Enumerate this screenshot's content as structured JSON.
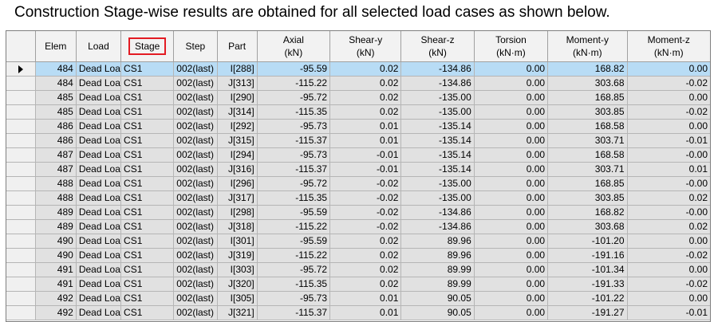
{
  "caption": "Construction Stage-wise results are obtained for all selected load cases as shown below.",
  "columns": {
    "elem": "Elem",
    "load": "Load",
    "stage": "Stage",
    "step": "Step",
    "part": "Part",
    "axial": "Axial",
    "axial_unit": "(kN)",
    "sheary": "Shear-y",
    "sheary_unit": "(kN)",
    "shearz": "Shear-z",
    "shearz_unit": "(kN)",
    "torsion": "Torsion",
    "torsion_unit": "(kN·m)",
    "momenty": "Moment-y",
    "momenty_unit": "(kN·m)",
    "momentz": "Moment-z",
    "momentz_unit": "(kN·m)"
  },
  "highlight_color": "#e31b23",
  "rows": [
    {
      "elem": "484",
      "load": "Dead Loa",
      "stage": "CS1",
      "step": "002(last)",
      "part": "I[288]",
      "axial": "-95.59",
      "sheary": "0.02",
      "shearz": "-134.86",
      "torsion": "0.00",
      "momenty": "168.82",
      "momentz": "0.00"
    },
    {
      "elem": "484",
      "load": "Dead Loa",
      "stage": "CS1",
      "step": "002(last)",
      "part": "J[313]",
      "axial": "-115.22",
      "sheary": "0.02",
      "shearz": "-134.86",
      "torsion": "0.00",
      "momenty": "303.68",
      "momentz": "-0.02"
    },
    {
      "elem": "485",
      "load": "Dead Loa",
      "stage": "CS1",
      "step": "002(last)",
      "part": "I[290]",
      "axial": "-95.72",
      "sheary": "0.02",
      "shearz": "-135.00",
      "torsion": "0.00",
      "momenty": "168.85",
      "momentz": "0.00"
    },
    {
      "elem": "485",
      "load": "Dead Loa",
      "stage": "CS1",
      "step": "002(last)",
      "part": "J[314]",
      "axial": "-115.35",
      "sheary": "0.02",
      "shearz": "-135.00",
      "torsion": "0.00",
      "momenty": "303.85",
      "momentz": "-0.02"
    },
    {
      "elem": "486",
      "load": "Dead Loa",
      "stage": "CS1",
      "step": "002(last)",
      "part": "I[292]",
      "axial": "-95.73",
      "sheary": "0.01",
      "shearz": "-135.14",
      "torsion": "0.00",
      "momenty": "168.58",
      "momentz": "0.00"
    },
    {
      "elem": "486",
      "load": "Dead Loa",
      "stage": "CS1",
      "step": "002(last)",
      "part": "J[315]",
      "axial": "-115.37",
      "sheary": "0.01",
      "shearz": "-135.14",
      "torsion": "0.00",
      "momenty": "303.71",
      "momentz": "-0.01"
    },
    {
      "elem": "487",
      "load": "Dead Loa",
      "stage": "CS1",
      "step": "002(last)",
      "part": "I[294]",
      "axial": "-95.73",
      "sheary": "-0.01",
      "shearz": "-135.14",
      "torsion": "0.00",
      "momenty": "168.58",
      "momentz": "-0.00"
    },
    {
      "elem": "487",
      "load": "Dead Loa",
      "stage": "CS1",
      "step": "002(last)",
      "part": "J[316]",
      "axial": "-115.37",
      "sheary": "-0.01",
      "shearz": "-135.14",
      "torsion": "0.00",
      "momenty": "303.71",
      "momentz": "0.01"
    },
    {
      "elem": "488",
      "load": "Dead Loa",
      "stage": "CS1",
      "step": "002(last)",
      "part": "I[296]",
      "axial": "-95.72",
      "sheary": "-0.02",
      "shearz": "-135.00",
      "torsion": "0.00",
      "momenty": "168.85",
      "momentz": "-0.00"
    },
    {
      "elem": "488",
      "load": "Dead Loa",
      "stage": "CS1",
      "step": "002(last)",
      "part": "J[317]",
      "axial": "-115.35",
      "sheary": "-0.02",
      "shearz": "-135.00",
      "torsion": "0.00",
      "momenty": "303.85",
      "momentz": "0.02"
    },
    {
      "elem": "489",
      "load": "Dead Loa",
      "stage": "CS1",
      "step": "002(last)",
      "part": "I[298]",
      "axial": "-95.59",
      "sheary": "-0.02",
      "shearz": "-134.86",
      "torsion": "0.00",
      "momenty": "168.82",
      "momentz": "-0.00"
    },
    {
      "elem": "489",
      "load": "Dead Loa",
      "stage": "CS1",
      "step": "002(last)",
      "part": "J[318]",
      "axial": "-115.22",
      "sheary": "-0.02",
      "shearz": "-134.86",
      "torsion": "0.00",
      "momenty": "303.68",
      "momentz": "0.02"
    },
    {
      "elem": "490",
      "load": "Dead Loa",
      "stage": "CS1",
      "step": "002(last)",
      "part": "I[301]",
      "axial": "-95.59",
      "sheary": "0.02",
      "shearz": "89.96",
      "torsion": "0.00",
      "momenty": "-101.20",
      "momentz": "0.00"
    },
    {
      "elem": "490",
      "load": "Dead Loa",
      "stage": "CS1",
      "step": "002(last)",
      "part": "J[319]",
      "axial": "-115.22",
      "sheary": "0.02",
      "shearz": "89.96",
      "torsion": "0.00",
      "momenty": "-191.16",
      "momentz": "-0.02"
    },
    {
      "elem": "491",
      "load": "Dead Loa",
      "stage": "CS1",
      "step": "002(last)",
      "part": "I[303]",
      "axial": "-95.72",
      "sheary": "0.02",
      "shearz": "89.99",
      "torsion": "0.00",
      "momenty": "-101.34",
      "momentz": "0.00"
    },
    {
      "elem": "491",
      "load": "Dead Loa",
      "stage": "CS1",
      "step": "002(last)",
      "part": "J[320]",
      "axial": "-115.35",
      "sheary": "0.02",
      "shearz": "89.99",
      "torsion": "0.00",
      "momenty": "-191.33",
      "momentz": "-0.02"
    },
    {
      "elem": "492",
      "load": "Dead Loa",
      "stage": "CS1",
      "step": "002(last)",
      "part": "I[305]",
      "axial": "-95.73",
      "sheary": "0.01",
      "shearz": "90.05",
      "torsion": "0.00",
      "momenty": "-101.22",
      "momentz": "0.00"
    },
    {
      "elem": "492",
      "load": "Dead Loa",
      "stage": "CS1",
      "step": "002(last)",
      "part": "J[321]",
      "axial": "-115.37",
      "sheary": "0.01",
      "shearz": "90.05",
      "torsion": "0.00",
      "momenty": "-191.27",
      "momentz": "-0.01"
    }
  ]
}
